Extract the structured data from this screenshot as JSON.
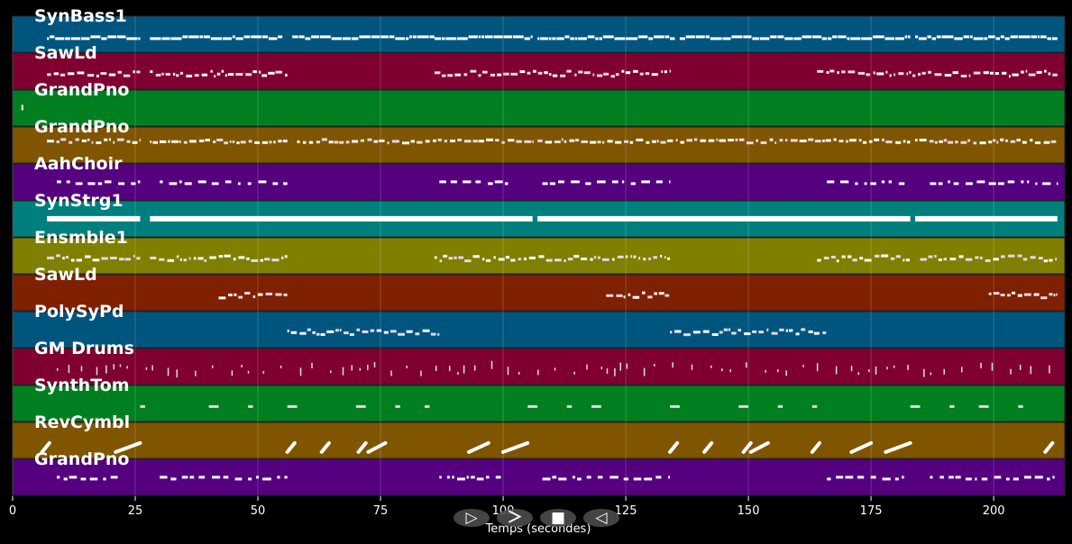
{
  "chart_data": {
    "type": "piano-roll",
    "xlabel": "Temps (secondes)",
    "xlim": [
      0,
      214.5
    ],
    "xticks": [
      0,
      25,
      50,
      75,
      100,
      125,
      150,
      175,
      200
    ],
    "grid": true,
    "tracks": [
      {
        "name": "SynBass1",
        "color": "#00557f",
        "style": "bass",
        "ranges": [
          [
            7,
            26
          ],
          [
            28,
            55
          ],
          [
            57,
            86
          ],
          [
            86,
            106
          ],
          [
            107,
            135
          ],
          [
            136,
            165
          ],
          [
            165,
            183
          ],
          [
            184,
            213
          ]
        ]
      },
      {
        "name": "SawLd",
        "color": "#7f0030",
        "style": "lead",
        "ranges": [
          [
            7,
            26
          ],
          [
            28,
            56
          ],
          [
            86,
            134
          ],
          [
            164,
            213
          ]
        ]
      },
      {
        "name": "GrandPno",
        "color": "#007f20",
        "style": "single",
        "ranges": [
          [
            1.8,
            2.2
          ]
        ]
      },
      {
        "name": "GrandPno",
        "color": "#7f5500",
        "style": "dense",
        "ranges": [
          [
            7,
            26
          ],
          [
            28,
            56
          ],
          [
            58,
            106
          ],
          [
            107,
            183
          ],
          [
            184,
            213
          ]
        ]
      },
      {
        "name": "AahChoir",
        "color": "#55007f",
        "style": "sparse",
        "ranges": [
          [
            9,
            26
          ],
          [
            30,
            56
          ],
          [
            87,
            101
          ],
          [
            108,
            134
          ],
          [
            166,
            182
          ],
          [
            187,
            213
          ]
        ]
      },
      {
        "name": "SynStrg1",
        "color": "#007f7f",
        "style": "thick",
        "ranges": [
          [
            7,
            26
          ],
          [
            28,
            106
          ],
          [
            107,
            183
          ],
          [
            184,
            213
          ]
        ]
      },
      {
        "name": "Ensmble1",
        "color": "#7f7f00",
        "style": "chord",
        "ranges": [
          [
            7,
            26
          ],
          [
            28,
            56
          ],
          [
            86,
            134
          ],
          [
            164,
            183
          ],
          [
            185,
            213
          ]
        ]
      },
      {
        "name": "SawLd",
        "color": "#7f2000",
        "style": "short",
        "ranges": [
          [
            42,
            56
          ],
          [
            121,
            134
          ],
          [
            199,
            213
          ]
        ]
      },
      {
        "name": "PolySyPd",
        "color": "#00557f",
        "style": "pad",
        "ranges": [
          [
            56,
            87
          ],
          [
            134,
            166
          ]
        ]
      },
      {
        "name": "GM Drums",
        "color": "#7f0030",
        "style": "drums",
        "ranges": [
          [
            9,
            213
          ]
        ]
      },
      {
        "name": "SynthTom",
        "color": "#007f20",
        "style": "tom",
        "ranges": [
          [
            26,
            27
          ],
          [
            40,
            42
          ],
          [
            48,
            49
          ],
          [
            56,
            58
          ],
          [
            70,
            72
          ],
          [
            78,
            79
          ],
          [
            84,
            85
          ],
          [
            105,
            107
          ],
          [
            113,
            114
          ],
          [
            118,
            120
          ],
          [
            134,
            136
          ],
          [
            148,
            150
          ],
          [
            156,
            157
          ],
          [
            163,
            164
          ],
          [
            183,
            185
          ],
          [
            191,
            192
          ],
          [
            197,
            199
          ],
          [
            205,
            206
          ]
        ]
      },
      {
        "name": "RevCymbl",
        "color": "#7f5500",
        "style": "cymbal",
        "ranges": [
          [
            6,
            7.5
          ],
          [
            21,
            26
          ],
          [
            56,
            57.5
          ],
          [
            63,
            64.5
          ],
          [
            70.5,
            72
          ],
          [
            72.5,
            76
          ],
          [
            93,
            97
          ],
          [
            100,
            105
          ],
          [
            134,
            135.5
          ],
          [
            141,
            142.5
          ],
          [
            149,
            150.5
          ],
          [
            150.5,
            154
          ],
          [
            163,
            164.5
          ],
          [
            171,
            175
          ],
          [
            178,
            183
          ],
          [
            210.5,
            212
          ]
        ]
      },
      {
        "name": "GrandPno",
        "color": "#55007f",
        "style": "melody",
        "ranges": [
          [
            9,
            22
          ],
          [
            30,
            56
          ],
          [
            87,
            100
          ],
          [
            108,
            134
          ],
          [
            166,
            182
          ],
          [
            187,
            213
          ]
        ]
      }
    ]
  },
  "toolbar": {
    "buttons": [
      "▷",
      "＞",
      "■",
      "◁"
    ]
  }
}
